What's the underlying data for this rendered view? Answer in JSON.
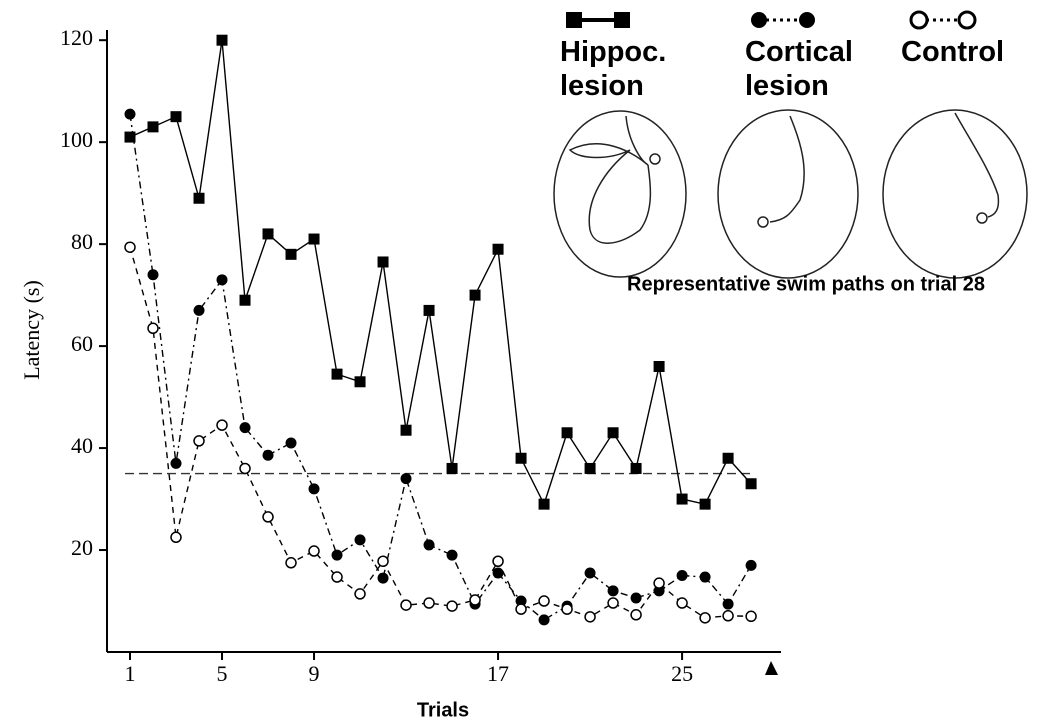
{
  "chart_data": {
    "type": "line",
    "x_label": "Trials",
    "y_label": "Latency (s)",
    "inset_caption": "Representative swim paths on trial 28",
    "x": [
      1,
      2,
      3,
      4,
      5,
      6,
      7,
      8,
      9,
      10,
      11,
      12,
      13,
      14,
      15,
      16,
      17,
      18,
      19,
      20,
      21,
      22,
      23,
      24,
      25,
      26,
      27,
      28
    ],
    "xlim": [
      0,
      29.3
    ],
    "xticks": [
      1,
      5,
      9,
      17,
      25
    ],
    "ylim": [
      0,
      122
    ],
    "yticks": [
      20,
      40,
      60,
      80,
      100,
      120
    ],
    "reference_line": 35,
    "series": [
      {
        "name": "Hippoc. lesion",
        "color": "#000000",
        "marker": "square",
        "dash": "solid",
        "values": [
          101,
          103,
          105,
          89,
          120,
          69,
          82,
          78,
          81,
          54.5,
          53,
          76.5,
          43.5,
          67,
          36,
          70,
          79,
          38,
          29,
          43,
          36,
          43,
          36,
          56,
          30,
          29,
          38,
          33
        ]
      },
      {
        "name": "Cortical lesion",
        "color": "#000000",
        "marker": "filled-circle",
        "dash": "dashdot",
        "values": [
          105.5,
          74,
          37,
          67,
          73,
          44,
          38.6,
          41,
          32,
          19,
          22,
          14.5,
          34,
          21,
          19,
          9.4,
          15.5,
          10,
          6.3,
          9,
          15.5,
          12,
          10.6,
          12,
          15,
          14.7,
          9.4,
          17
        ]
      },
      {
        "name": "Control",
        "color": "#000000",
        "marker": "open-circle",
        "dash": "dashed",
        "values": [
          79.4,
          63.5,
          22.5,
          41.4,
          44.5,
          36,
          26.5,
          17.5,
          19.8,
          14.7,
          11.4,
          17.8,
          9.2,
          9.6,
          9,
          10.2,
          17.8,
          8.4,
          10,
          8.4,
          6.9,
          9.6,
          7.3,
          13.5,
          9.6,
          6.7,
          7.1,
          7
        ]
      }
    ]
  }
}
